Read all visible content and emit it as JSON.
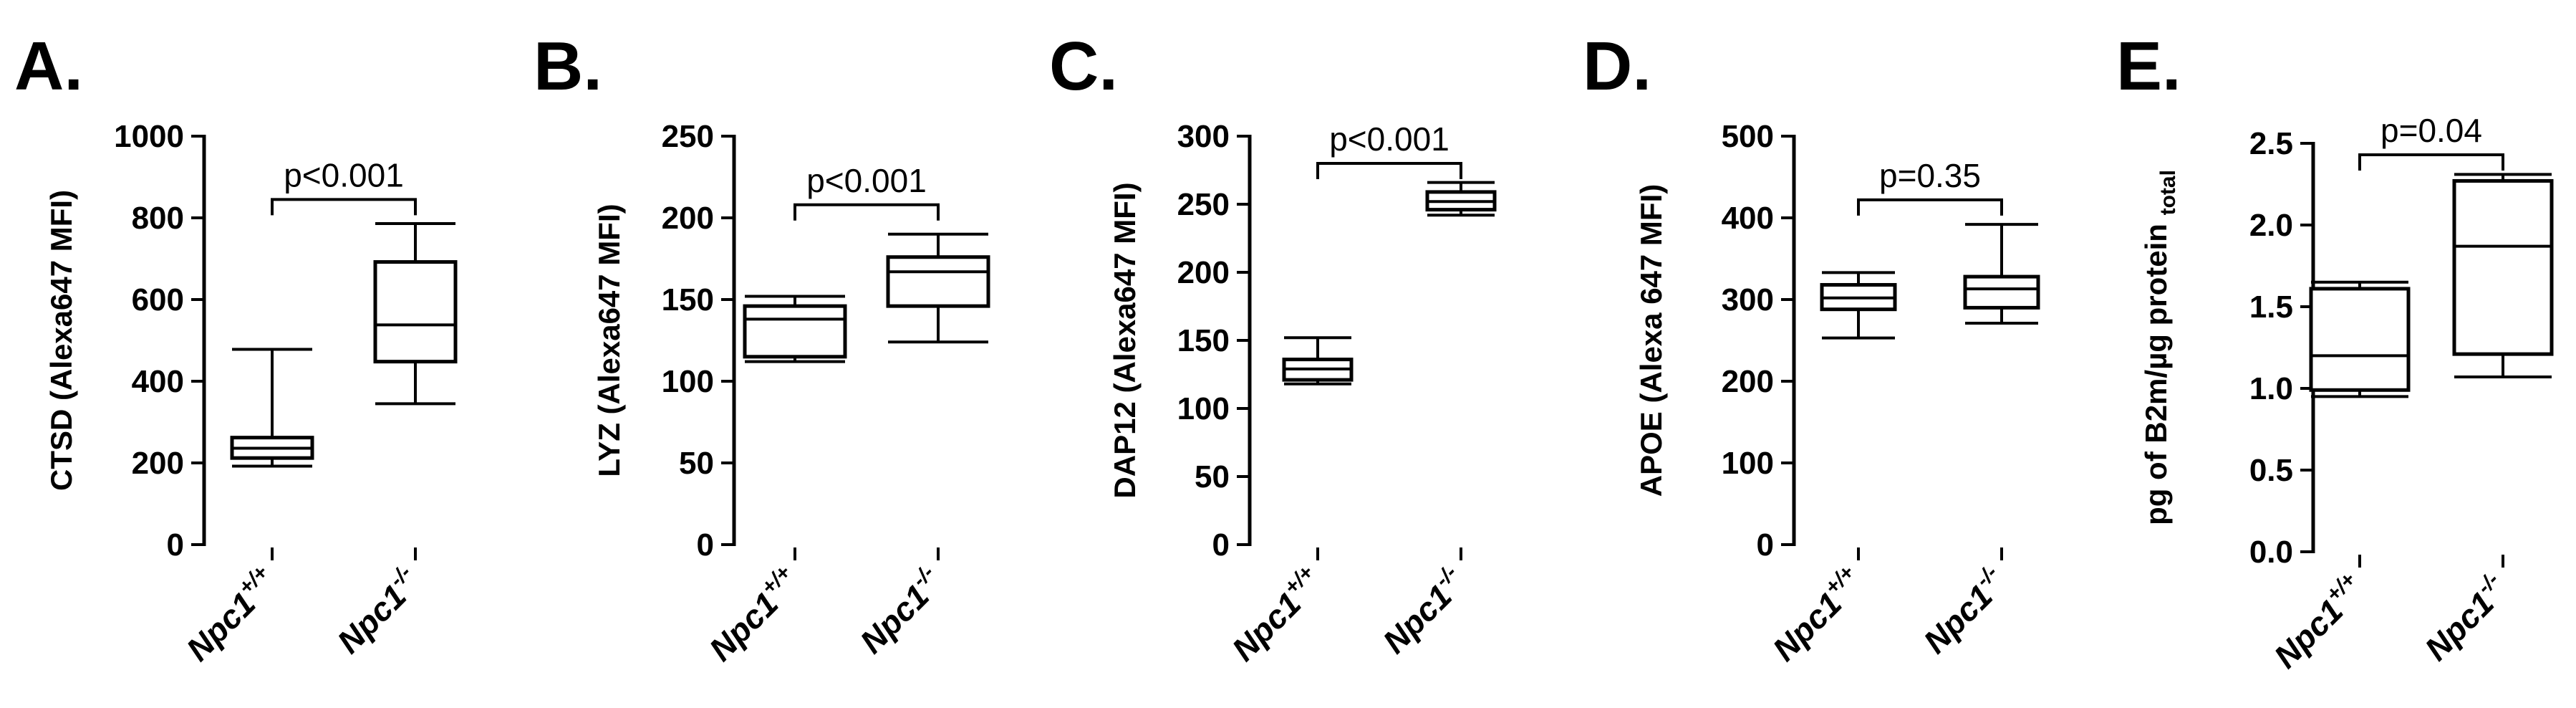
{
  "chart_data": [
    {
      "type": "box",
      "panel_label": "A.",
      "ylabel": "CTSD (Alexa647 MFI)",
      "ylim": [
        0,
        1000
      ],
      "yticks": [
        0,
        200,
        400,
        600,
        800,
        1000
      ],
      "yticklabels": [
        "0",
        "200",
        "400",
        "600",
        "800",
        "1000"
      ],
      "categories": [
        {
          "base": "Npc1",
          "sup": "+/+"
        },
        {
          "base": "Npc1",
          "sup": "-/-"
        }
      ],
      "boxes": [
        {
          "min": 192,
          "q1": 212,
          "median": 236,
          "q3": 262,
          "max": 478
        },
        {
          "min": 345,
          "q1": 448,
          "median": 538,
          "q3": 692,
          "max": 786
        }
      ],
      "annotation": "p<0.001",
      "bracket_y": 845
    },
    {
      "type": "box",
      "panel_label": "B.",
      "ylabel": "LYZ (Alexa647 MFI)",
      "ylim": [
        0,
        250
      ],
      "yticks": [
        0,
        50,
        100,
        150,
        200,
        250
      ],
      "yticklabels": [
        "0",
        "50",
        "100",
        "150",
        "200",
        "250"
      ],
      "categories": [
        {
          "base": "Npc1",
          "sup": "+/+"
        },
        {
          "base": "Npc1",
          "sup": "-/-"
        }
      ],
      "boxes": [
        {
          "min": 112,
          "q1": 115,
          "median": 138,
          "q3": 146,
          "max": 152
        },
        {
          "min": 124,
          "q1": 146,
          "median": 167,
          "q3": 176,
          "max": 190
        }
      ],
      "annotation": "p<0.001",
      "bracket_y": 208
    },
    {
      "type": "box",
      "panel_label": "C.",
      "ylabel": "DAP12 (Alexa647 MFI)",
      "ylim": [
        0,
        300
      ],
      "yticks": [
        0,
        50,
        100,
        150,
        200,
        250,
        300
      ],
      "yticklabels": [
        "0",
        "50",
        "100",
        "150",
        "200",
        "250",
        "300"
      ],
      "categories": [
        {
          "base": "Npc1",
          "sup": "+/+"
        },
        {
          "base": "Npc1",
          "sup": "-/-"
        }
      ],
      "boxes": [
        {
          "min": 118,
          "q1": 121,
          "median": 129,
          "q3": 136,
          "max": 152
        },
        {
          "min": 242,
          "q1": 246,
          "median": 252,
          "q3": 259,
          "max": 266
        }
      ],
      "annotation": "p<0.001",
      "bracket_y": 280
    },
    {
      "type": "box",
      "panel_label": "D.",
      "ylabel": "APOE (Alexa 647 MFI)",
      "ylim": [
        0,
        500
      ],
      "yticks": [
        0,
        100,
        200,
        300,
        400,
        500
      ],
      "yticklabels": [
        "0",
        "100",
        "200",
        "300",
        "400",
        "500"
      ],
      "categories": [
        {
          "base": "Npc1",
          "sup": "+/+"
        },
        {
          "base": "Npc1",
          "sup": "-/-"
        }
      ],
      "boxes": [
        {
          "min": 253,
          "q1": 288,
          "median": 302,
          "q3": 318,
          "max": 333
        },
        {
          "min": 271,
          "q1": 290,
          "median": 313,
          "q3": 328,
          "max": 392
        }
      ],
      "annotation": "p=0.35",
      "bracket_y": 422
    },
    {
      "type": "box",
      "panel_label": "E.",
      "ylabel_main": "pg of B2m/µg protein",
      "ylabel_sub": "total",
      "ylim": [
        0,
        2.5
      ],
      "yticks": [
        0,
        0.5,
        1.0,
        1.5,
        2.0,
        2.5
      ],
      "yticklabels": [
        "0.0",
        "0.5",
        "1.0",
        "1.5",
        "2.0",
        "2.5"
      ],
      "categories": [
        {
          "base": "Npc1",
          "sup": "+/+"
        },
        {
          "base": "Npc1",
          "sup": "-/-"
        }
      ],
      "boxes": [
        {
          "min": 0.95,
          "q1": 0.99,
          "median": 1.2,
          "q3": 1.61,
          "max": 1.65
        },
        {
          "min": 1.07,
          "q1": 1.21,
          "median": 1.87,
          "q3": 2.27,
          "max": 2.31
        }
      ],
      "annotation": "p=0.04",
      "bracket_y": 2.43
    }
  ]
}
